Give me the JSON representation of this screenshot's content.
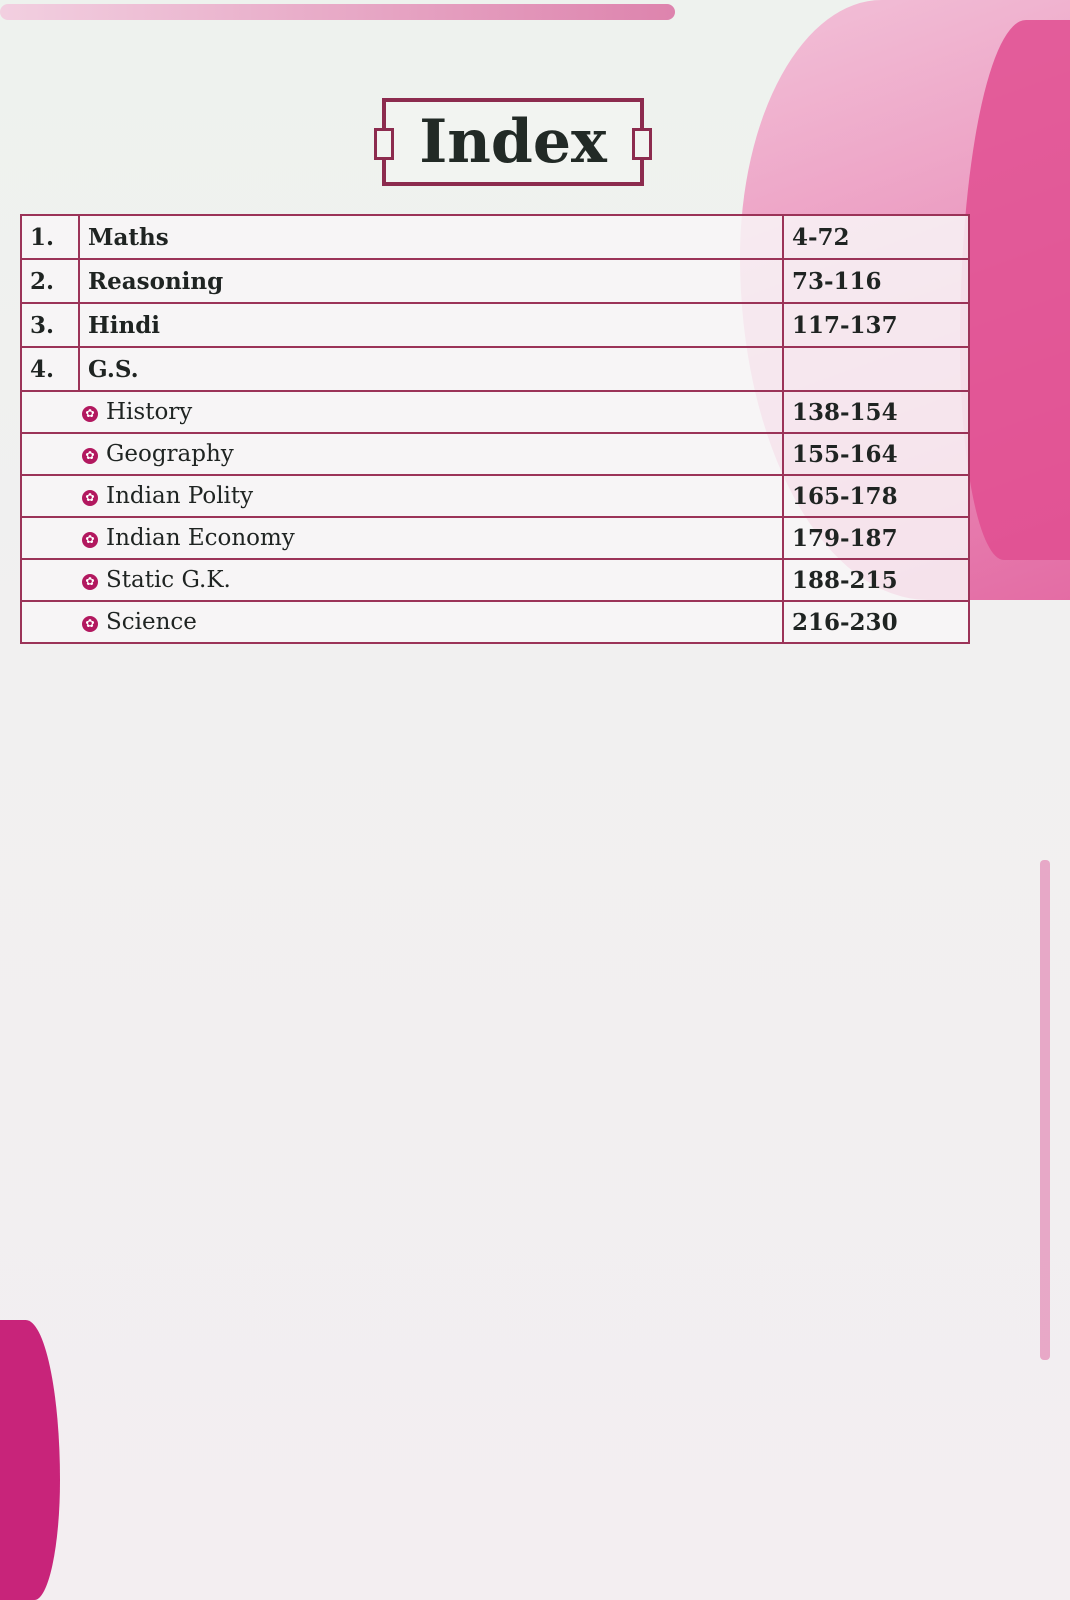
{
  "title": "Index",
  "colors": {
    "accent": "#9b3358",
    "bullet": "#b2185f",
    "pink": "#e04d91"
  },
  "main_items": [
    {
      "num": "1.",
      "label": "Maths",
      "pages": "4-72"
    },
    {
      "num": "2.",
      "label": "Reasoning",
      "pages": "73-116"
    },
    {
      "num": "3.",
      "label": "Hindi",
      "pages": "117-137"
    },
    {
      "num": "4.",
      "label": "G.S.",
      "pages": ""
    }
  ],
  "sub_items": [
    {
      "label": "History",
      "pages": "138-154"
    },
    {
      "label": "Geography",
      "pages": "155-164"
    },
    {
      "label": "Indian Polity",
      "pages": "165-178"
    },
    {
      "label": "Indian Economy",
      "pages": "179-187"
    },
    {
      "label": "Static G.K.",
      "pages": "188-215"
    },
    {
      "label": "Science",
      "pages": "216-230"
    }
  ],
  "bullet_icon": "star-circle-icon"
}
